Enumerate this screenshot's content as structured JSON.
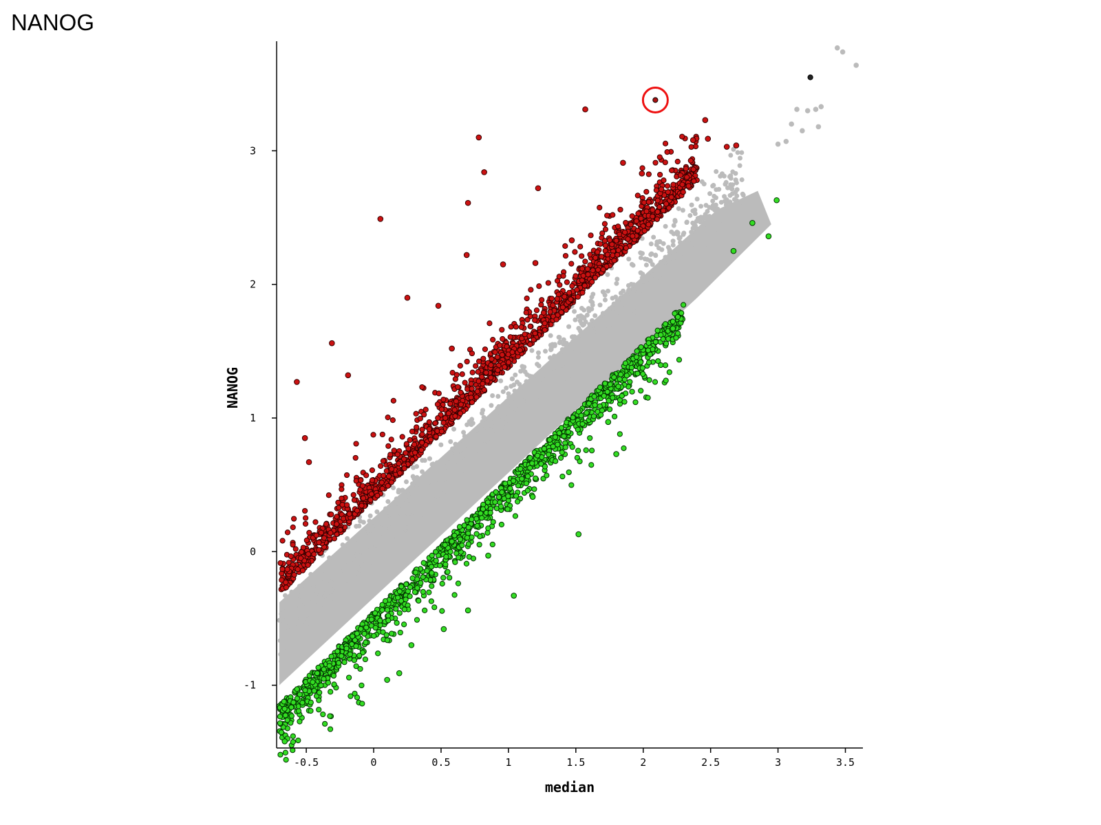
{
  "page": {
    "title": "NANOG"
  },
  "chart_data": {
    "type": "scatter",
    "title": "",
    "xlabel": "median",
    "ylabel": "NANOG",
    "xlim": [
      -0.72,
      3.63
    ],
    "ylim": [
      -1.47,
      3.82
    ],
    "x_ticks": [
      -0.5,
      0,
      0.5,
      1,
      1.5,
      2,
      2.5,
      3,
      3.5
    ],
    "x_tick_labels": [
      "-0.5",
      "0",
      "0.5",
      "1",
      "1.5",
      "2",
      "2.5",
      "3",
      "3.5"
    ],
    "y_ticks": [
      -1,
      0,
      1,
      2,
      3
    ],
    "y_tick_labels": [
      "-1",
      "0",
      "1",
      "2",
      "3"
    ],
    "grid": false,
    "legend": "none",
    "colors": {
      "up": "#d7191c",
      "down": "#33dd22",
      "unchanged": "#bbbbbb",
      "highlight": "#ee1111"
    },
    "series": [
      {
        "key": "up",
        "points": [
          [
            0.05,
            2.49
          ],
          [
            0.78,
            3.1
          ],
          [
            0.82,
            2.84
          ],
          [
            1.22,
            2.72
          ],
          [
            0.7,
            2.61
          ],
          [
            1.57,
            3.31
          ],
          [
            1.85,
            2.91
          ],
          [
            1.99,
            2.83
          ],
          [
            2.46,
            3.23
          ],
          [
            2.37,
            3.08
          ],
          [
            2.48,
            3.09
          ],
          [
            2.62,
            3.03
          ],
          [
            2.69,
            3.04
          ],
          [
            -0.31,
            1.56
          ],
          [
            -0.19,
            1.32
          ],
          [
            0.25,
            1.9
          ],
          [
            0.48,
            1.84
          ],
          [
            0.69,
            2.22
          ],
          [
            0.96,
            2.15
          ],
          [
            0.58,
            1.52
          ],
          [
            -0.57,
            1.27
          ],
          [
            -0.51,
            0.85
          ],
          [
            -0.48,
            0.67
          ],
          [
            1.47,
            2.33
          ],
          [
            1.2,
            2.16
          ]
        ]
      },
      {
        "key": "down",
        "points": [
          [
            2.99,
            2.63
          ],
          [
            2.81,
            2.46
          ],
          [
            2.93,
            2.36
          ],
          [
            2.67,
            2.25
          ],
          [
            1.8,
            0.73
          ],
          [
            1.52,
            0.13
          ],
          [
            1.04,
            -0.33
          ],
          [
            0.1,
            -0.96
          ],
          [
            0.19,
            -0.91
          ],
          [
            -0.64,
            -1.4
          ],
          [
            -0.66,
            -1.42
          ],
          [
            1.18,
            0.41
          ],
          [
            0.85,
            -0.03
          ],
          [
            1.74,
            0.97
          ],
          [
            2.22,
            1.67
          ],
          [
            0.7,
            -0.44
          ],
          [
            0.28,
            -0.7
          ],
          [
            0.52,
            -0.58
          ]
        ]
      },
      {
        "key": "unchanged",
        "points": [
          [
            3.44,
            3.77
          ],
          [
            3.48,
            3.74
          ],
          [
            3.58,
            3.64
          ],
          [
            3.32,
            3.33
          ],
          [
            3.28,
            3.31
          ],
          [
            3.14,
            3.31
          ],
          [
            3.22,
            3.3
          ],
          [
            3.1,
            3.2
          ],
          [
            3.18,
            3.15
          ],
          [
            3.3,
            3.18
          ],
          [
            3.0,
            3.05
          ],
          [
            3.06,
            3.07
          ]
        ]
      }
    ],
    "special_points": [
      {
        "key": "unchanged-black",
        "x": 3.24,
        "y": 3.55
      },
      {
        "key": "highlighted",
        "x": 2.09,
        "y": 3.38
      }
    ]
  }
}
